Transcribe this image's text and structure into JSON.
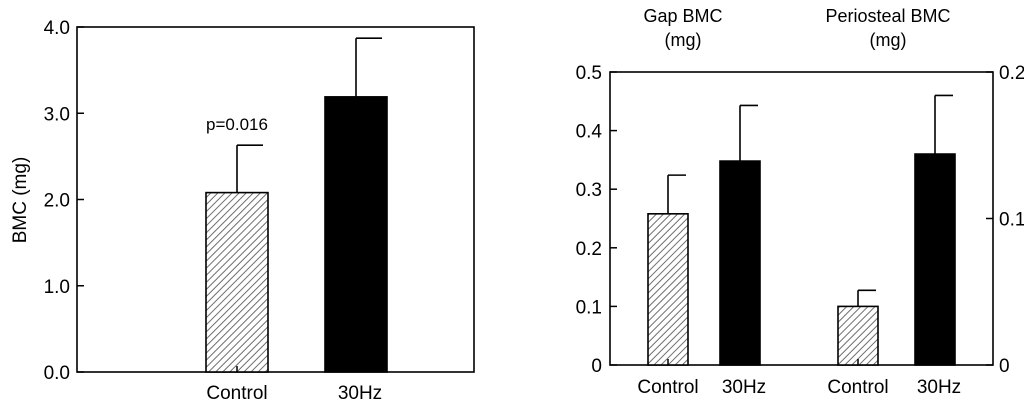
{
  "chart_data": [
    {
      "type": "bar",
      "title": "",
      "xlabel": "",
      "ylabel": "BMC (mg)",
      "ylim": [
        0,
        4.0
      ],
      "yticks": [
        "0.0",
        "1.0",
        "2.0",
        "3.0",
        "4.0"
      ],
      "categories": [
        "Control",
        "30Hz"
      ],
      "values": [
        2.08,
        3.19
      ],
      "errors": [
        0.55,
        0.68
      ],
      "fills": [
        "hatched",
        "#000000"
      ],
      "annotation": "p=0.016"
    },
    {
      "type": "bar",
      "title": "",
      "xlabel": "",
      "ylabel": "",
      "groups": [
        {
          "title_line1": "Gap BMC",
          "title_line2": "(mg)",
          "axis": "left",
          "ylim": [
            0,
            0.5
          ],
          "yticks": [
            "0",
            "0.1",
            "0.2",
            "0.3",
            "0.4",
            "0.5"
          ],
          "categories": [
            "Control",
            "30Hz"
          ],
          "values": [
            0.258,
            0.348
          ],
          "errors": [
            0.066,
            0.095
          ],
          "fills": [
            "hatched",
            "#000000"
          ]
        },
        {
          "title_line1": "Periosteal BMC",
          "title_line2": "(mg)",
          "axis": "right",
          "ylim": [
            0,
            0.2
          ],
          "yticks": [
            "0",
            "0.1",
            "0.2"
          ],
          "categories": [
            "Control",
            "30Hz"
          ],
          "values": [
            0.04,
            0.144
          ],
          "errors": [
            0.011,
            0.04
          ],
          "fills": [
            "hatched",
            "#000000"
          ]
        }
      ]
    }
  ]
}
